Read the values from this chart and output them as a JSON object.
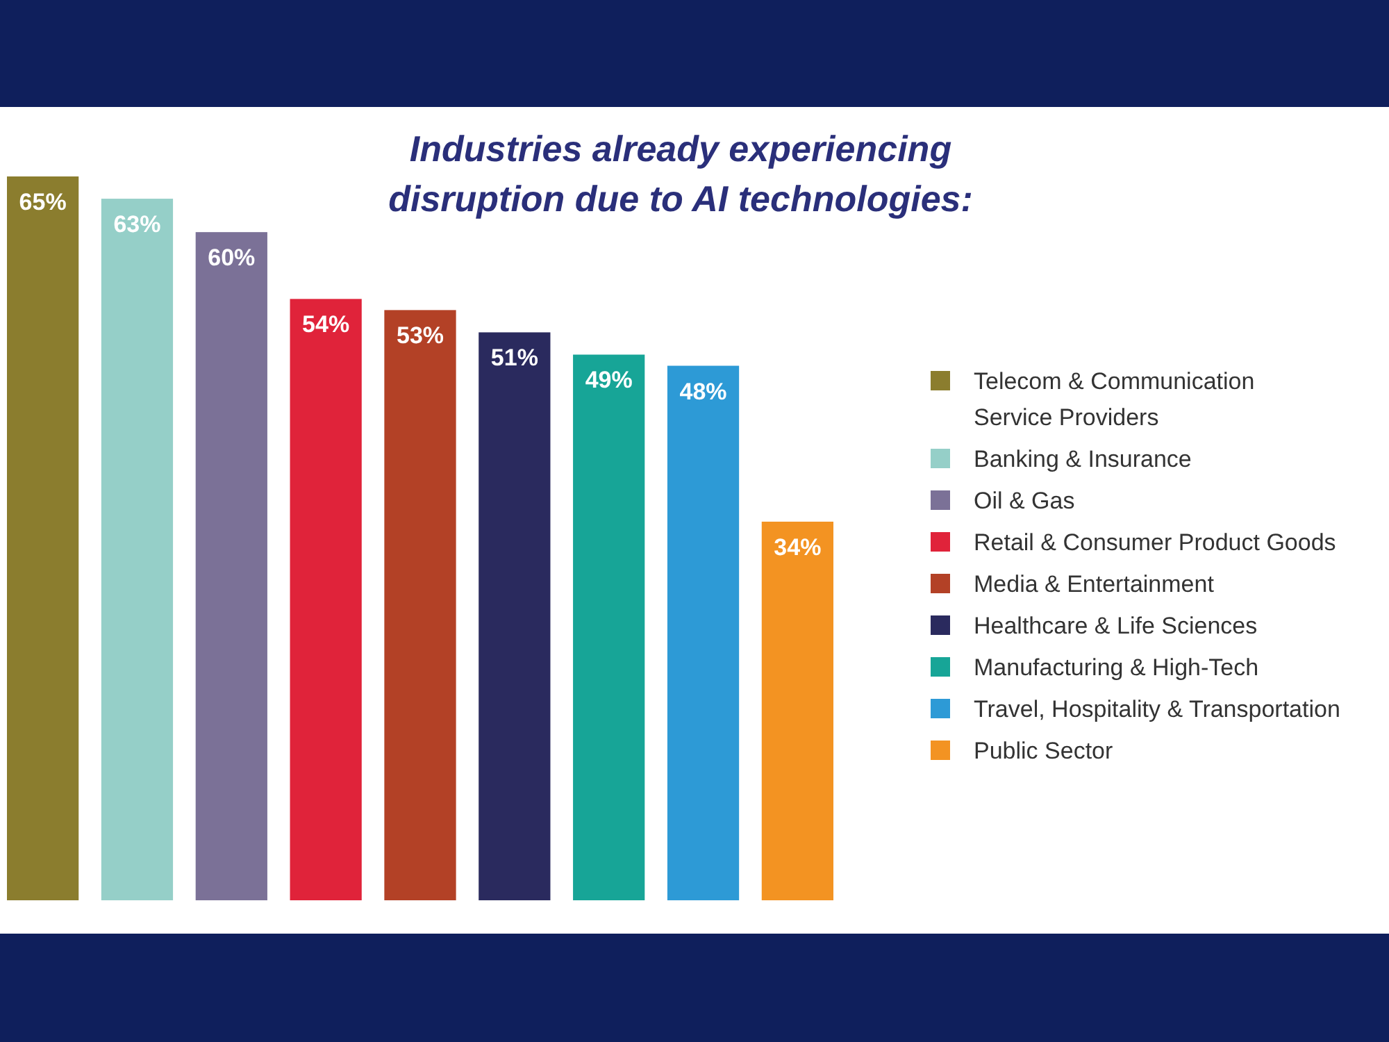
{
  "chart_data": {
    "type": "bar",
    "title": "Industries already experiencing disruption due to AI technologies:",
    "categories": [
      null,
      null,
      null,
      null,
      null,
      null,
      null,
      null,
      null
    ],
    "stacked": true,
    "series": [
      {
        "name": "Telecom & Communication Service Providers",
        "color": "#8b7d2e",
        "values": [
          65,
          null,
          null,
          null,
          null,
          null,
          null,
          null,
          null
        ],
        "value_labels": [
          "65%",
          null,
          null,
          null,
          null,
          null,
          null,
          null,
          null
        ]
      },
      {
        "name": "Banking & Insurance",
        "color": "#95cfc8",
        "values": [
          null,
          63,
          null,
          null,
          null,
          null,
          null,
          null,
          null
        ],
        "value_labels": [
          null,
          "63%",
          null,
          null,
          null,
          null,
          null,
          null,
          null
        ]
      },
      {
        "name": "Oil & Gas",
        "color": "#7b7197",
        "values": [
          null,
          null,
          60,
          null,
          null,
          null,
          null,
          null,
          null
        ],
        "value_labels": [
          null,
          null,
          "60%",
          null,
          null,
          null,
          null,
          null,
          null
        ]
      },
      {
        "name": "Retail & Consumer Product Goods",
        "color": "#e0233a",
        "values": [
          null,
          null,
          null,
          54,
          null,
          null,
          null,
          null,
          null
        ],
        "value_labels": [
          null,
          null,
          null,
          "54%",
          null,
          null,
          null,
          null,
          null
        ]
      },
      {
        "name": "Media & Entertainment",
        "color": "#b34126",
        "values": [
          null,
          null,
          null,
          null,
          53,
          null,
          null,
          null,
          null
        ],
        "value_labels": [
          null,
          null,
          null,
          null,
          "53%",
          null,
          null,
          null,
          null
        ]
      },
      {
        "name": "Healthcare & Life Sciences",
        "color": "#2a2a5e",
        "values": [
          null,
          null,
          null,
          null,
          null,
          51,
          null,
          null,
          null
        ],
        "value_labels": [
          null,
          null,
          null,
          null,
          null,
          "51%",
          null,
          null,
          null
        ]
      },
      {
        "name": "Manufacturing & High-Tech",
        "color": "#17a597",
        "values": [
          null,
          null,
          null,
          null,
          null,
          null,
          49,
          null,
          null
        ],
        "value_labels": [
          null,
          null,
          null,
          null,
          null,
          null,
          "49%",
          null,
          null
        ]
      },
      {
        "name": "Travel, Hospitality & Transportation",
        "color": "#2d9ad6",
        "values": [
          null,
          null,
          null,
          null,
          null,
          null,
          null,
          48,
          null
        ],
        "value_labels": [
          null,
          null,
          null,
          null,
          null,
          null,
          null,
          "48%",
          null
        ]
      },
      {
        "name": "Public Sector",
        "color": "#f39322",
        "values": [
          null,
          null,
          null,
          null,
          null,
          null,
          null,
          null,
          34
        ],
        "value_labels": [
          null,
          null,
          null,
          null,
          null,
          null,
          null,
          null,
          "34%"
        ]
      }
    ],
    "legend": "right"
  }
}
